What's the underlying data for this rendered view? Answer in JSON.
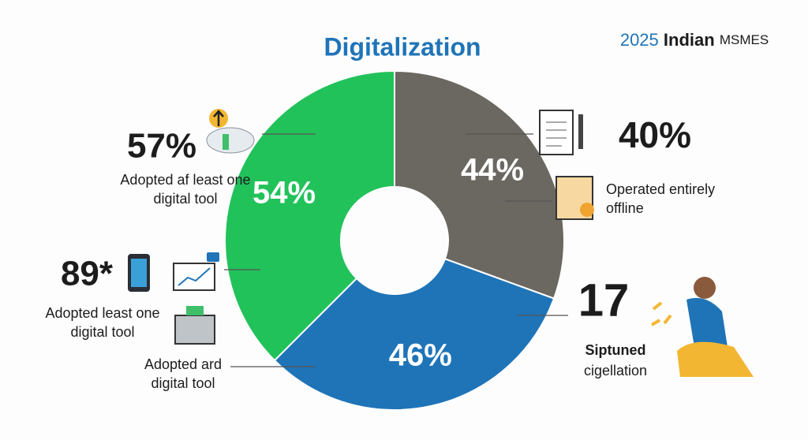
{
  "chart_data": {
    "type": "donut",
    "title": "Digitalization",
    "subtitle": [
      "2025",
      "Indian",
      "MSMES"
    ],
    "values": [
      44,
      46,
      54
    ],
    "value_labels": [
      "44%",
      "46%",
      "54%"
    ],
    "colors": [
      "#6b6761",
      "#1f74b8",
      "#22c25a"
    ],
    "annotations": [
      {
        "stat": "57%",
        "lines": [
          "Adopted af least one",
          "digital tool"
        ]
      },
      {
        "stat": "40%",
        "lines": [
          "Operated entirely",
          "offline"
        ]
      },
      {
        "stat": "89*",
        "lines": [
          "Adopted least one",
          "digital tool"
        ]
      },
      {
        "stat": "17",
        "lines": [
          "Siptuned",
          "cigellation"
        ]
      },
      {
        "lines": [
          "Adopted ard",
          "digital tool"
        ]
      }
    ]
  }
}
